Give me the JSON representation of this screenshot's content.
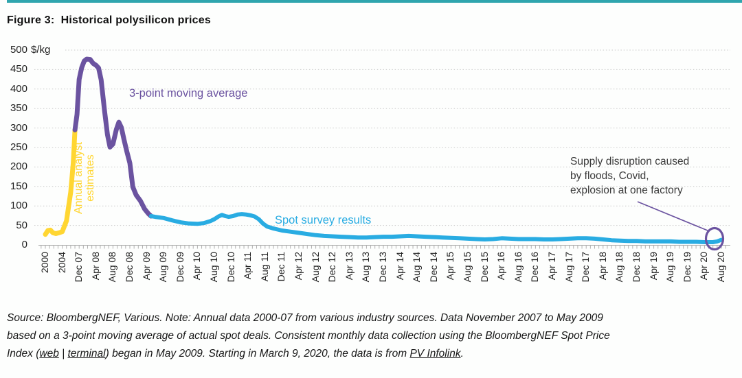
{
  "figure": {
    "title": "Figure 3:  Historical polysilicon prices",
    "accent_bar_color": "#2fa5ae"
  },
  "chart_data": {
    "type": "line",
    "title": "Figure 3: Historical polysilicon prices",
    "unit": "$/kg",
    "ylim": [
      0,
      500
    ],
    "y_ticks": [
      0,
      50,
      100,
      150,
      200,
      250,
      300,
      350,
      400,
      450,
      500
    ],
    "grid": "horizontal dotted, light gray",
    "legend_position": "labels drawn on chart next to each series",
    "x_tick_labels": [
      "2000",
      "2004",
      "Dec 07",
      "Apr 08",
      "Aug 08",
      "Dec 08",
      "Apr 09",
      "Aug 09",
      "Dec 09",
      "Apr 10",
      "Aug 10",
      "Dec 10",
      "Apr 11",
      "Aug 11",
      "Dec 11",
      "Apr 12",
      "Aug 12",
      "Dec 12",
      "Apr 13",
      "Aug 13",
      "Dec 13",
      "Apr 14",
      "Aug 14",
      "Dec 14",
      "Apr 15",
      "Aug 15",
      "Dec 15",
      "Apr 16",
      "Aug 16",
      "Dec 16",
      "Apr 17",
      "Aug 17",
      "Dec 17",
      "Apr 18",
      "Aug 18",
      "Dec 18",
      "Apr 19",
      "Aug 19",
      "Dec 19",
      "Apr 20",
      "Aug 20"
    ],
    "x_encoding_note": "x index 0-7 = annual points 2000-2007; index 8 = Dec 2007 then monthly through index 160 = Aug 2020; axis tick labels sit at indices 0, 4, then 8,12,16,...160",
    "series": [
      {
        "label": "Annual analyst\nestimates",
        "name": "Annual analyst estimates",
        "color": "#ffd632",
        "stroke_width": 7,
        "points": [
          [
            0,
            27
          ],
          [
            0.6,
            37
          ],
          [
            1.2,
            38
          ],
          [
            1.8,
            31
          ],
          [
            2.5,
            29
          ],
          [
            3.2,
            31
          ],
          [
            4,
            34
          ],
          [
            5,
            62
          ],
          [
            6,
            135
          ],
          [
            6.6,
            210
          ],
          [
            7,
            295
          ]
        ]
      },
      {
        "label": "3-point moving average",
        "name": "3-point moving average",
        "color": "#6b53a0",
        "stroke_width": 7,
        "points": [
          [
            7,
            295
          ],
          [
            7.5,
            335
          ],
          [
            8,
            425
          ],
          [
            8.6,
            455
          ],
          [
            9.2,
            472
          ],
          [
            9.8,
            477
          ],
          [
            10.6,
            476
          ],
          [
            11.3,
            466
          ],
          [
            12,
            461
          ],
          [
            12.6,
            454
          ],
          [
            13.2,
            424
          ],
          [
            14,
            345
          ],
          [
            14.7,
            283
          ],
          [
            15.3,
            251
          ],
          [
            16,
            259
          ],
          [
            16.8,
            296
          ],
          [
            17.4,
            315
          ],
          [
            18,
            301
          ],
          [
            18.6,
            271
          ],
          [
            19.3,
            239
          ],
          [
            20,
            210
          ],
          [
            20.7,
            149
          ],
          [
            21.5,
            128
          ],
          [
            22.5,
            113
          ],
          [
            23.5,
            92
          ],
          [
            24.4,
            80
          ],
          [
            25,
            74
          ]
        ]
      },
      {
        "label": "Spot survey results",
        "name": "Spot survey results",
        "color": "#29ace2",
        "stroke_width": 6,
        "points": [
          [
            25,
            74
          ],
          [
            26,
            72
          ],
          [
            28,
            69
          ],
          [
            30,
            63
          ],
          [
            32,
            58
          ],
          [
            34,
            55
          ],
          [
            36,
            54
          ],
          [
            37.5,
            56
          ],
          [
            39,
            61
          ],
          [
            40,
            66
          ],
          [
            41,
            73
          ],
          [
            41.8,
            77
          ],
          [
            42.6,
            74
          ],
          [
            43.4,
            72
          ],
          [
            44.4,
            74
          ],
          [
            45.5,
            78
          ],
          [
            46.5,
            79
          ],
          [
            47.5,
            78
          ],
          [
            48.5,
            76
          ],
          [
            49.5,
            73
          ],
          [
            50.5,
            66
          ],
          [
            51.5,
            55
          ],
          [
            52.5,
            47
          ],
          [
            54,
            42
          ],
          [
            56,
            37
          ],
          [
            58,
            34
          ],
          [
            60,
            31
          ],
          [
            62,
            28
          ],
          [
            64,
            25
          ],
          [
            66,
            23
          ],
          [
            68,
            22
          ],
          [
            70,
            21
          ],
          [
            72,
            20
          ],
          [
            74,
            19
          ],
          [
            76,
            19
          ],
          [
            78,
            20
          ],
          [
            80,
            21
          ],
          [
            82,
            21
          ],
          [
            84,
            22
          ],
          [
            86,
            23
          ],
          [
            88,
            22
          ],
          [
            90,
            21
          ],
          [
            92,
            20
          ],
          [
            94,
            19
          ],
          [
            96,
            18
          ],
          [
            98,
            17
          ],
          [
            100,
            16
          ],
          [
            102,
            15
          ],
          [
            104,
            14
          ],
          [
            106,
            15
          ],
          [
            108,
            17
          ],
          [
            110,
            16
          ],
          [
            112,
            15
          ],
          [
            114,
            15
          ],
          [
            116,
            15
          ],
          [
            118,
            14
          ],
          [
            120,
            14
          ],
          [
            122,
            15
          ],
          [
            124,
            16
          ],
          [
            126,
            17
          ],
          [
            128,
            17
          ],
          [
            130,
            16
          ],
          [
            132,
            14
          ],
          [
            134,
            12
          ],
          [
            136,
            11
          ],
          [
            138,
            10
          ],
          [
            140,
            10
          ],
          [
            142,
            9
          ],
          [
            144,
            9
          ],
          [
            146,
            9
          ],
          [
            148,
            9
          ],
          [
            150,
            8
          ],
          [
            152,
            8
          ],
          [
            154,
            8
          ],
          [
            156,
            7
          ],
          [
            158,
            7
          ],
          [
            159,
            9
          ],
          [
            160,
            13
          ]
        ]
      }
    ],
    "annotation": {
      "text": "Supply disruption caused\nby floods, Covid,\nexplosion at one factory",
      "arrow_color": "#6b53a0",
      "circle_color": "#6b53a0",
      "circled_x_label": "Aug 20"
    }
  },
  "style": {
    "gridline_color": "#c9c9c9",
    "axis_color": "#a8a8a8",
    "tick_color": "#b0b0b0"
  },
  "source": {
    "lines": [
      [
        {
          "text": "Source: BloombergNEF, Various. Note: Annual data 2000-07 from various industry sources. Data November 2007 to May 2009",
          "underline": false
        }
      ],
      [
        {
          "text": "based on a 3-point moving average of actual spot deals. Consistent monthly data collection using the BloombergNEF Spot Price",
          "underline": false
        }
      ],
      [
        {
          "text": "Index (",
          "underline": false
        },
        {
          "text": "web",
          "underline": true
        },
        {
          "text": " | ",
          "underline": false
        },
        {
          "text": "terminal",
          "underline": true
        },
        {
          "text": ") began in May 2009. Starting in March 9, 2020, the data is from ",
          "underline": false
        },
        {
          "text": "PV Infolink",
          "underline": true
        },
        {
          "text": ".",
          "underline": false
        }
      ]
    ]
  }
}
